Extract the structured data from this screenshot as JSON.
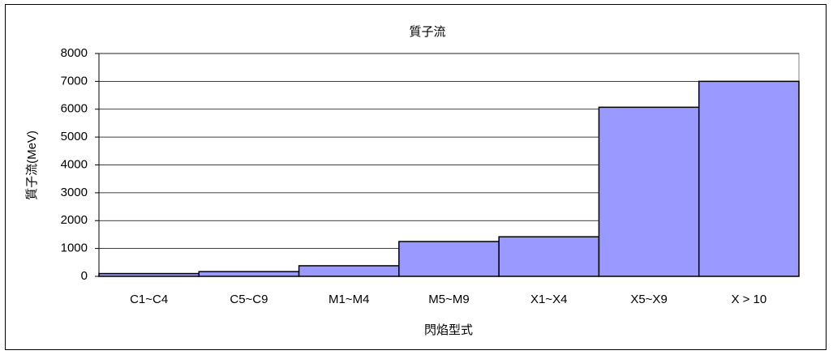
{
  "chart_data": {
    "type": "bar",
    "title": "質子流",
    "x_label": "閃焰型式",
    "y_label": "質子流(MeV)",
    "categories": [
      "C1~C4",
      "C5~C9",
      "M1~M4",
      "M5~M9",
      "X1~X4",
      "X5~X9",
      "X > 10"
    ],
    "values": [
      100,
      170,
      380,
      1250,
      1420,
      6070,
      7000
    ],
    "color": "#9999ff",
    "ylim": [
      0,
      8000
    ],
    "yticks": [
      0,
      1000,
      2000,
      3000,
      4000,
      5000,
      6000,
      7000,
      8000
    ],
    "grid": true
  }
}
